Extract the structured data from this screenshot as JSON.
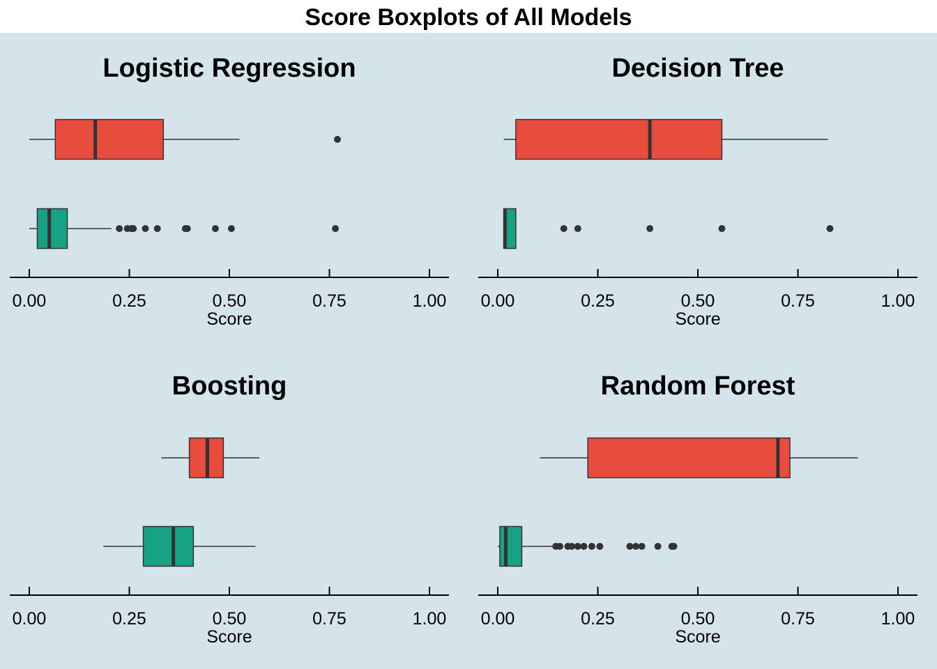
{
  "title": "Score Boxplots of All Models",
  "colors": {
    "background": "#d5e4eb",
    "box_top": "#e84c3d",
    "box_bottom": "#17a185",
    "line": "#333333",
    "axis": "#000000"
  },
  "chart_data": [
    {
      "type": "boxplot",
      "title": "Logistic Regression",
      "xlabel": "Score",
      "xlim": [
        0,
        1
      ],
      "xticks": [
        "0.00",
        "0.25",
        "0.50",
        "0.75",
        "1.00"
      ],
      "boxes": [
        {
          "min": 0.0,
          "q1": 0.065,
          "median": 0.165,
          "q3": 0.335,
          "max": 0.525,
          "outliers": [
            0.77
          ]
        },
        {
          "min": 0.0,
          "q1": 0.02,
          "median": 0.05,
          "q3": 0.095,
          "max": 0.205,
          "outliers": [
            0.225,
            0.245,
            0.255,
            0.26,
            0.29,
            0.32,
            0.39,
            0.395,
            0.465,
            0.505,
            0.765
          ]
        }
      ]
    },
    {
      "type": "boxplot",
      "title": "Decision Tree",
      "xlabel": "Score",
      "xlim": [
        0,
        1
      ],
      "xticks": [
        "0.00",
        "0.25",
        "0.50",
        "0.75",
        "1.00"
      ],
      "boxes": [
        {
          "min": 0.015,
          "q1": 0.045,
          "median": 0.38,
          "q3": 0.56,
          "max": 0.825,
          "outliers": []
        },
        {
          "min": 0.015,
          "q1": 0.015,
          "median": 0.018,
          "q3": 0.045,
          "max": 0.045,
          "outliers": [
            0.165,
            0.2,
            0.38,
            0.56,
            0.83
          ]
        }
      ]
    },
    {
      "type": "boxplot",
      "title": "Boosting",
      "xlabel": "Score",
      "xlim": [
        0,
        1
      ],
      "xticks": [
        "0.00",
        "0.25",
        "0.50",
        "0.75",
        "1.00"
      ],
      "boxes": [
        {
          "min": 0.33,
          "q1": 0.4,
          "median": 0.445,
          "q3": 0.485,
          "max": 0.575,
          "outliers": []
        },
        {
          "min": 0.185,
          "q1": 0.285,
          "median": 0.36,
          "q3": 0.41,
          "max": 0.565,
          "outliers": []
        }
      ]
    },
    {
      "type": "boxplot",
      "title": "Random Forest",
      "xlabel": "Score",
      "xlim": [
        0,
        1
      ],
      "xticks": [
        "0.00",
        "0.25",
        "0.50",
        "0.75",
        "1.00"
      ],
      "boxes": [
        {
          "min": 0.105,
          "q1": 0.225,
          "median": 0.7,
          "q3": 0.73,
          "max": 0.9,
          "outliers": []
        },
        {
          "min": 0.0,
          "q1": 0.005,
          "median": 0.02,
          "q3": 0.06,
          "max": 0.14,
          "outliers": [
            0.145,
            0.155,
            0.175,
            0.185,
            0.2,
            0.215,
            0.235,
            0.255,
            0.33,
            0.345,
            0.36,
            0.4,
            0.435,
            0.44
          ]
        }
      ]
    }
  ]
}
